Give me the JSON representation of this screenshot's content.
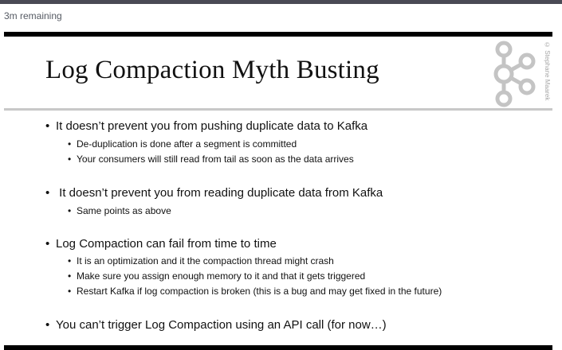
{
  "status": {
    "remaining": "3m remaining"
  },
  "slide": {
    "title": "Log Compaction Myth Busting",
    "copyright": "© Stephane Maarek",
    "logo_icon": "kafka-logo-icon",
    "bullet_char": "•",
    "points": [
      {
        "text": "It doesn’t prevent you from pushing duplicate data to Kafka",
        "subpoints": [
          "De-duplication is done after a segment is committed",
          "Your consumers will still read from tail as soon as the data arrives"
        ]
      },
      {
        "text": " It doesn’t prevent you from reading duplicate data from Kafka",
        "subpoints": [
          "Same points as above"
        ]
      },
      {
        "text": "Log Compaction can fail from time to time",
        "subpoints": [
          "It is an optimization and it the compaction thread might crash",
          "Make sure you assign enough memory to it and that it gets triggered",
          "Restart Kafka if log compaction is broken (this is a bug and may get fixed in the future)"
        ]
      },
      {
        "text": "You can’t trigger Log Compaction using an API call (for now…)",
        "subpoints": []
      }
    ]
  }
}
